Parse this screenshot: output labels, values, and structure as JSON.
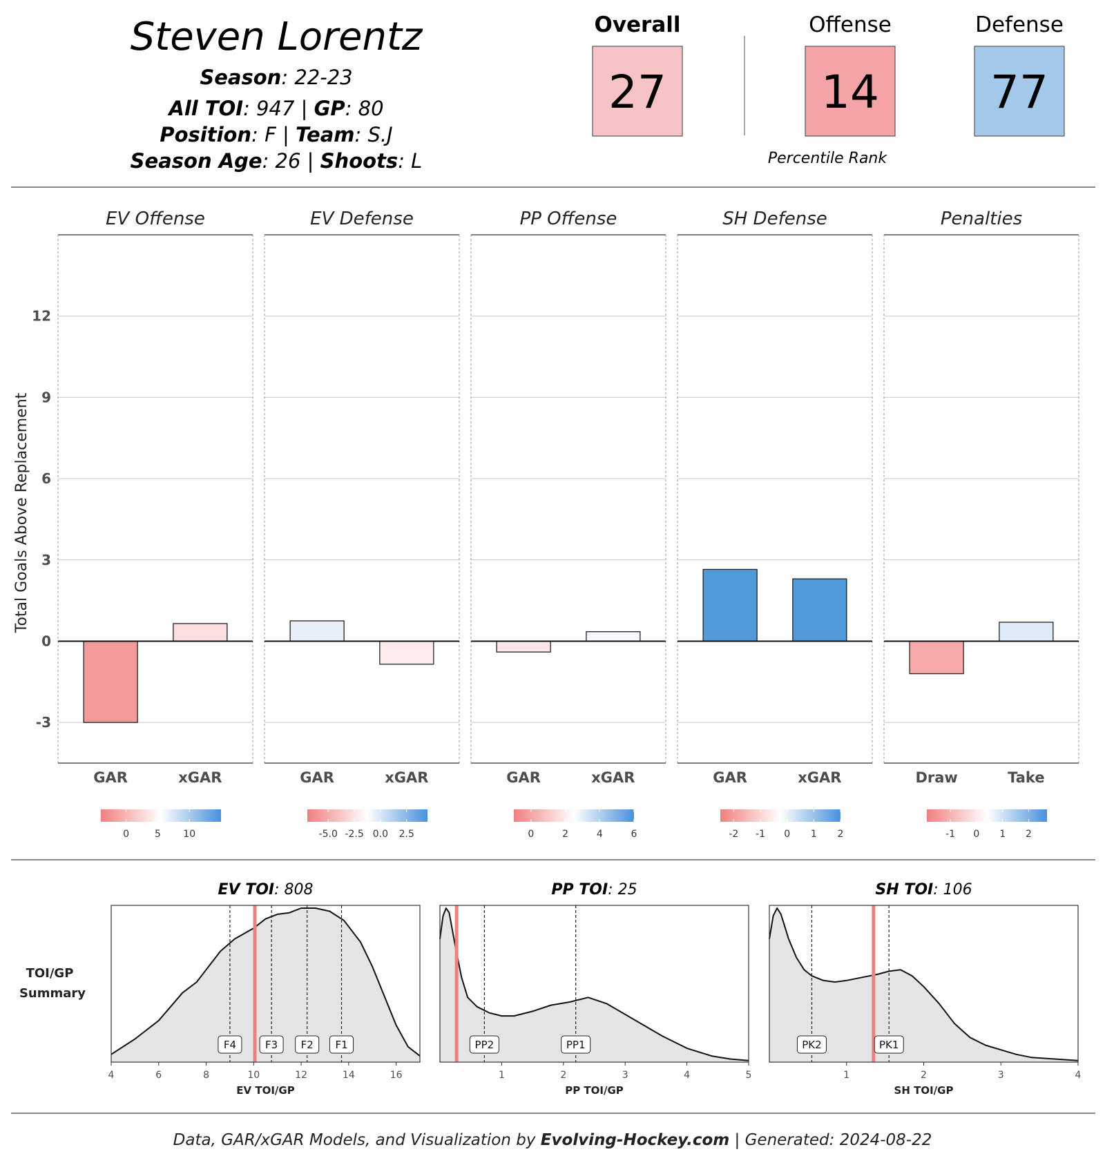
{
  "header": {
    "name": "Steven Lorentz",
    "rows": [
      [
        {
          "label": "Season",
          "value": "22-23"
        }
      ],
      [
        {
          "label": "All TOI",
          "value": "947"
        },
        {
          "label": "GP",
          "value": "80"
        }
      ],
      [
        {
          "label": "Position",
          "value": "F"
        },
        {
          "label": "Team",
          "value": "S.J"
        }
      ],
      [
        {
          "label": "Season Age",
          "value": "26"
        },
        {
          "label": "Shoots",
          "value": "L"
        }
      ]
    ]
  },
  "ranks": {
    "items": [
      {
        "label": "Overall",
        "value": "27",
        "color": "#f6c4c6",
        "bold": true
      },
      {
        "label": "Offense",
        "value": "14",
        "color": "#f4a3a6",
        "bold": false
      },
      {
        "label": "Defense",
        "value": "77",
        "color": "#a3c8ea",
        "bold": false
      }
    ],
    "caption": "Percentile Rank"
  },
  "colors": {
    "negative": "#f08080",
    "neutral": "#ffffff",
    "positive": "#4a90d9",
    "toi_marker": "#f08080",
    "density_fill": "#e5e5e5"
  },
  "chart_data": [
    {
      "type": "bar",
      "ylabel": "Total Goals Above Replacement",
      "ylim": [
        -4.5,
        15
      ],
      "yticks": [
        -3,
        0,
        3,
        6,
        9,
        12
      ],
      "facets": [
        {
          "title": "EV Offense",
          "categories": [
            "GAR",
            "xGAR"
          ],
          "values": [
            -3.0,
            0.65
          ],
          "colors": [
            "#f59a9a",
            "#fddede"
          ],
          "legend": {
            "min": -4,
            "max": 15,
            "ticks": [
              0,
              5,
              10
            ],
            "labels": [
              "0",
              "5",
              "10"
            ]
          }
        },
        {
          "title": "EV Defense",
          "categories": [
            "GAR",
            "xGAR"
          ],
          "values": [
            0.75,
            -0.85
          ],
          "colors": [
            "#e7effa",
            "#fdebec"
          ],
          "legend": {
            "min": -7,
            "max": 4.5,
            "ticks": [
              -5,
              -2.5,
              0,
              2.5
            ],
            "labels": [
              "-5.0",
              "-2.5",
              "0.0",
              "2.5"
            ]
          }
        },
        {
          "title": "PP Offense",
          "categories": [
            "GAR",
            "xGAR"
          ],
          "values": [
            -0.4,
            0.35
          ],
          "colors": [
            "#fde6e6",
            "#f6f8fd"
          ],
          "legend": {
            "min": -1,
            "max": 6,
            "ticks": [
              0,
              2,
              4,
              6
            ],
            "labels": [
              "0",
              "2",
              "4",
              "6"
            ]
          }
        },
        {
          "title": "SH Defense",
          "categories": [
            "GAR",
            "xGAR"
          ],
          "values": [
            2.65,
            2.3
          ],
          "colors": [
            "#519ad9",
            "#519ad9"
          ],
          "legend": {
            "min": -2.5,
            "max": 2,
            "ticks": [
              -2,
              -1,
              0,
              1,
              2
            ],
            "labels": [
              "-2",
              "-1",
              "0",
              "1",
              "2"
            ]
          }
        },
        {
          "title": "Penalties",
          "categories": [
            "Draw",
            "Take"
          ],
          "values": [
            -1.2,
            0.7
          ],
          "colors": [
            "#f8aaaa",
            "#dfeaf8"
          ],
          "legend": {
            "min": -1.9,
            "max": 2.7,
            "ticks": [
              -1,
              0,
              1,
              2
            ],
            "labels": [
              "-1",
              "0",
              "1",
              "2"
            ]
          }
        }
      ]
    },
    {
      "type": "area",
      "label_line1": "TOI/GP",
      "label_line2": "Summary",
      "panels": [
        {
          "title_bold": "EV TOI",
          "title_value": "808",
          "xlabel": "EV TOI/GP",
          "xlim": [
            4,
            17
          ],
          "xticks": [
            4,
            6,
            8,
            10,
            12,
            14,
            16
          ],
          "player": 10.05,
          "markers": [
            {
              "label": "F4",
              "x": 9.0
            },
            {
              "label": "F3",
              "x": 10.75
            },
            {
              "label": "F2",
              "x": 12.25
            },
            {
              "label": "F1",
              "x": 13.7
            }
          ],
          "curve": [
            [
              4,
              0.05
            ],
            [
              5,
              0.15
            ],
            [
              6,
              0.27
            ],
            [
              7,
              0.45
            ],
            [
              7.6,
              0.52
            ],
            [
              8,
              0.6
            ],
            [
              8.6,
              0.72
            ],
            [
              9.2,
              0.8
            ],
            [
              10,
              0.87
            ],
            [
              10.5,
              0.93
            ],
            [
              11,
              0.96
            ],
            [
              11.5,
              0.97
            ],
            [
              12,
              1.0
            ],
            [
              12.6,
              1.0
            ],
            [
              13.2,
              0.98
            ],
            [
              13.8,
              0.92
            ],
            [
              14.5,
              0.78
            ],
            [
              15,
              0.62
            ],
            [
              15.5,
              0.43
            ],
            [
              16,
              0.24
            ],
            [
              16.5,
              0.1
            ],
            [
              17,
              0.04
            ]
          ]
        },
        {
          "title_bold": "PP TOI",
          "title_value": "25",
          "xlabel": "PP TOI/GP",
          "xlim": [
            0,
            5
          ],
          "xticks": [
            1,
            2,
            3,
            4,
            5
          ],
          "player": 0.27,
          "markers": [
            {
              "label": "PP2",
              "x": 0.72
            },
            {
              "label": "PP1",
              "x": 2.2
            }
          ],
          "curve": [
            [
              0,
              0.8
            ],
            [
              0.05,
              0.95
            ],
            [
              0.1,
              1.0
            ],
            [
              0.15,
              0.97
            ],
            [
              0.25,
              0.75
            ],
            [
              0.35,
              0.55
            ],
            [
              0.45,
              0.42
            ],
            [
              0.6,
              0.36
            ],
            [
              0.8,
              0.32
            ],
            [
              1.0,
              0.3
            ],
            [
              1.2,
              0.3
            ],
            [
              1.5,
              0.33
            ],
            [
              1.8,
              0.37
            ],
            [
              2.1,
              0.39
            ],
            [
              2.4,
              0.42
            ],
            [
              2.7,
              0.38
            ],
            [
              3.0,
              0.31
            ],
            [
              3.3,
              0.24
            ],
            [
              3.6,
              0.17
            ],
            [
              4.0,
              0.09
            ],
            [
              4.4,
              0.04
            ],
            [
              4.7,
              0.02
            ],
            [
              5.0,
              0.01
            ]
          ]
        },
        {
          "title_bold": "SH TOI",
          "title_value": "106",
          "xlabel": "SH TOI/GP",
          "xlim": [
            0,
            4
          ],
          "xticks": [
            1,
            2,
            3,
            4
          ],
          "player": 1.35,
          "markers": [
            {
              "label": "PK2",
              "x": 0.55
            },
            {
              "label": "PK1",
              "x": 1.55
            }
          ],
          "curve": [
            [
              0,
              0.8
            ],
            [
              0.05,
              0.95
            ],
            [
              0.1,
              1.0
            ],
            [
              0.15,
              0.96
            ],
            [
              0.25,
              0.8
            ],
            [
              0.35,
              0.68
            ],
            [
              0.45,
              0.6
            ],
            [
              0.55,
              0.56
            ],
            [
              0.7,
              0.53
            ],
            [
              0.85,
              0.52
            ],
            [
              1.0,
              0.53
            ],
            [
              1.2,
              0.55
            ],
            [
              1.4,
              0.57
            ],
            [
              1.55,
              0.59
            ],
            [
              1.7,
              0.6
            ],
            [
              1.85,
              0.56
            ],
            [
              2.0,
              0.49
            ],
            [
              2.2,
              0.38
            ],
            [
              2.4,
              0.25
            ],
            [
              2.6,
              0.16
            ],
            [
              2.8,
              0.11
            ],
            [
              3.0,
              0.08
            ],
            [
              3.2,
              0.05
            ],
            [
              3.4,
              0.03
            ],
            [
              3.7,
              0.02
            ],
            [
              4.0,
              0.01
            ]
          ]
        }
      ]
    }
  ],
  "footer": {
    "prefix": "Data, GAR/xGAR Models, and Visualization by ",
    "brand": "Evolving-Hockey.com",
    "suffix": " | Generated: 2024-08-22"
  }
}
